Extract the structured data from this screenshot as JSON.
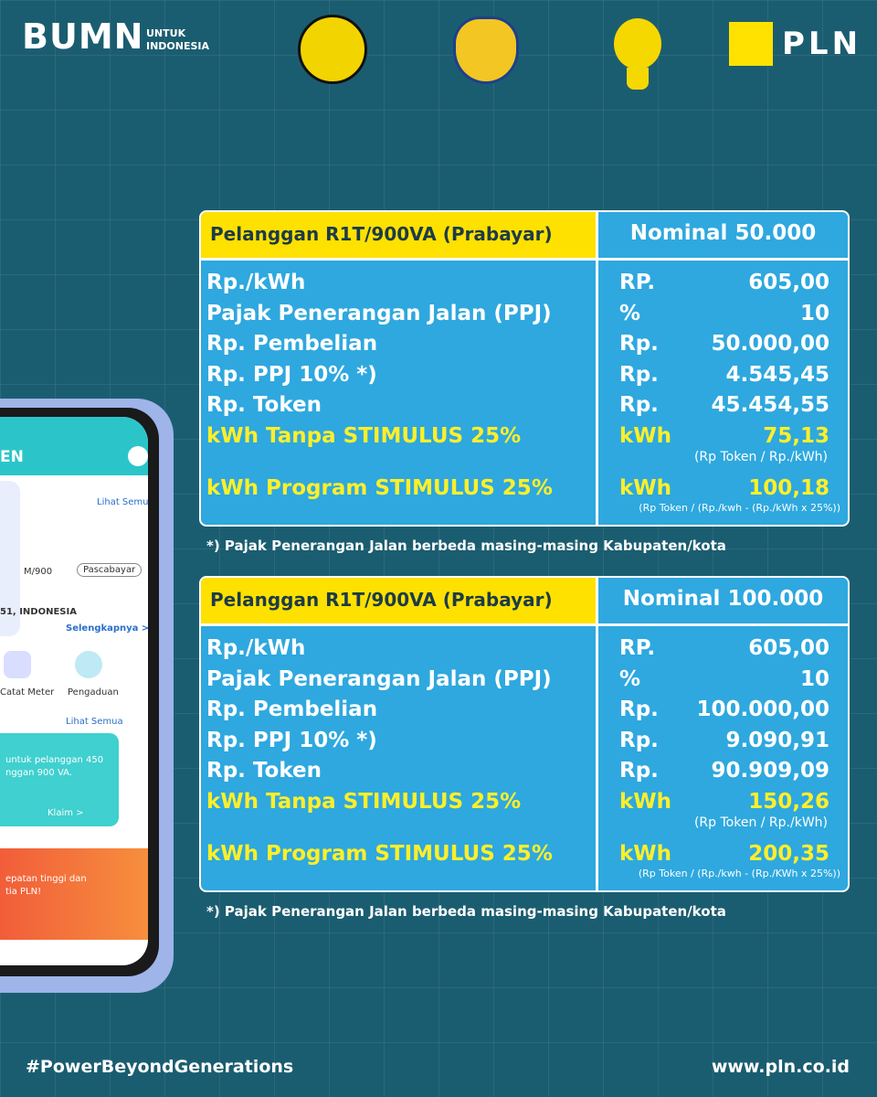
{
  "header": {
    "bumn": "BUMN",
    "bumn_sub_1": "UNTUK",
    "bumn_sub_2": "INDONESIA",
    "pln": "PLN"
  },
  "tables": [
    {
      "header": [
        "Pelanggan R1T/900VA (Prabayar)",
        "Nominal 50.000"
      ],
      "rows": [
        {
          "label": "Rp./kWh",
          "unit": "RP.",
          "value": "605,00"
        },
        {
          "label": "Pajak Penerangan Jalan (PPJ)",
          "unit": "%",
          "value": "10"
        },
        {
          "label": "Rp. Pembelian",
          "unit": "Rp.",
          "value": "50.000,00"
        },
        {
          "label": "Rp. PPJ 10% *)",
          "unit": "Rp.",
          "value": "4.545,45"
        },
        {
          "label": "Rp. Token",
          "unit": "Rp.",
          "value": "45.454,55"
        },
        {
          "label": "kWh Tanpa STIMULUS 25%",
          "unit": "kWh",
          "value": "75,13",
          "note": "(Rp Token / Rp./kWh)"
        },
        {
          "label": "kWh Program STIMULUS 25%",
          "unit": "kWh",
          "value": "100,18",
          "note": "(Rp Token / (Rp./kwh - (Rp./kWh x 25%))"
        }
      ],
      "footnote": "*) Pajak Penerangan Jalan berbeda masing-masing Kabupaten/kota"
    },
    {
      "header": [
        "Pelanggan R1T/900VA (Prabayar)",
        "Nominal 100.000"
      ],
      "rows": [
        {
          "label": "Rp./kWh",
          "unit": "RP.",
          "value": "605,00"
        },
        {
          "label": "Pajak Penerangan Jalan (PPJ)",
          "unit": "%",
          "value": "10"
        },
        {
          "label": "Rp. Pembelian",
          "unit": "Rp.",
          "value": "100.000,00"
        },
        {
          "label": "Rp. PPJ 10% *)",
          "unit": "Rp.",
          "value": "9.090,91"
        },
        {
          "label": "Rp. Token",
          "unit": "Rp.",
          "value": "90.909,09"
        },
        {
          "label": "kWh Tanpa STIMULUS 25%",
          "unit": "kWh",
          "value": "150,26",
          "note": "(Rp Token / Rp./kWh)"
        },
        {
          "label": "kWh Program STIMULUS 25%",
          "unit": "kWh",
          "value": "200,35",
          "note": "(Rp Token / (Rp./kwh - (Rp./KWh x 25%))"
        }
      ],
      "footnote": "*) Pajak Penerangan Jalan berbeda masing-masing Kabupaten/kota"
    }
  ],
  "phone": {
    "brand": "EN",
    "see_all_1": "Lihat Semua",
    "plan": "M/900",
    "postpaid": "Pascabayar",
    "address": "51, INDONESIA",
    "more": "Selengkapnya >",
    "menu_1": "Catat Meter",
    "menu_2": "Pengaduan",
    "see_all_2": "Lihat Semua",
    "promo_1": "untuk pelanggan 450",
    "promo_2": "nggan 900 VA.",
    "claim": "Klaim >",
    "banner_1": "epatan tinggi dan",
    "banner_2": "tia PLN!"
  },
  "footer": {
    "hashtag": "#PowerBeyondGenerations",
    "url": "www.pln.co.id"
  }
}
